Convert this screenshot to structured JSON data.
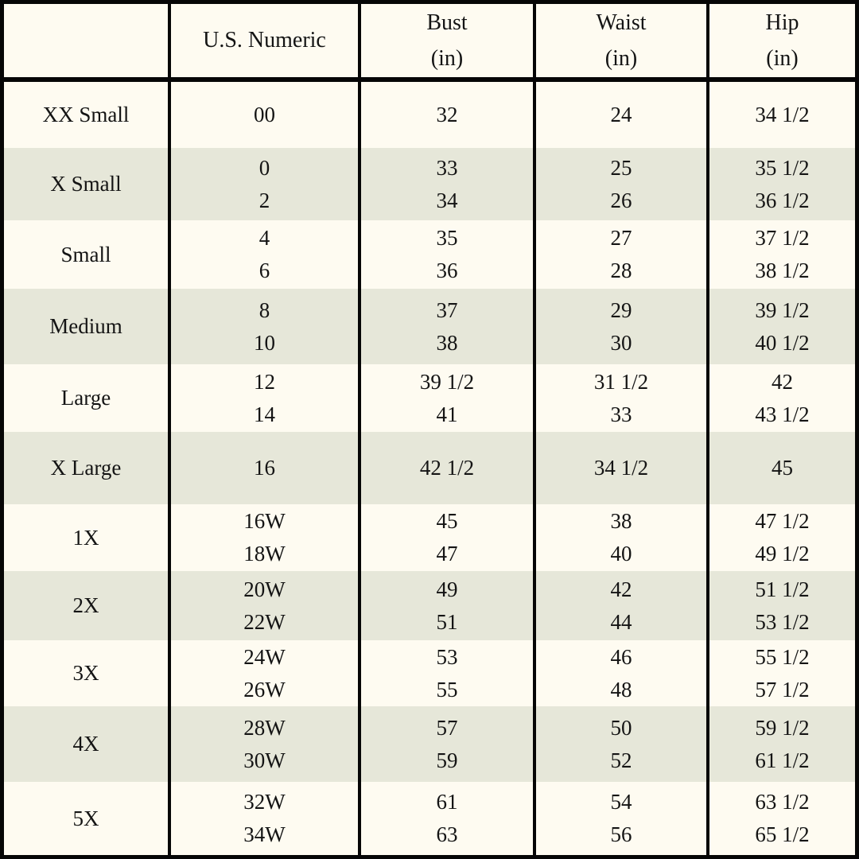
{
  "chart_data": {
    "type": "table",
    "header": {
      "size": "",
      "numeric": "U.S. Numeric",
      "bust": [
        "Bust",
        "(in)"
      ],
      "waist": [
        "Waist",
        "(in)"
      ],
      "hip": [
        "Hip",
        "(in)"
      ]
    },
    "rows": [
      {
        "size": "XX Small",
        "numeric": [
          "00"
        ],
        "bust": [
          "32"
        ],
        "waist": [
          "24"
        ],
        "hip": [
          "34 1/2"
        ]
      },
      {
        "size": "X Small",
        "numeric": [
          "0",
          "2"
        ],
        "bust": [
          "33",
          "34"
        ],
        "waist": [
          "25",
          "26"
        ],
        "hip": [
          "35 1/2",
          "36 1/2"
        ]
      },
      {
        "size": "Small",
        "numeric": [
          "4",
          "6"
        ],
        "bust": [
          "35",
          "36"
        ],
        "waist": [
          "27",
          "28"
        ],
        "hip": [
          "37 1/2",
          "38 1/2"
        ]
      },
      {
        "size": "Medium",
        "numeric": [
          "8",
          "10"
        ],
        "bust": [
          "37",
          "38"
        ],
        "waist": [
          "29",
          "30"
        ],
        "hip": [
          "39 1/2",
          "40 1/2"
        ]
      },
      {
        "size": "Large",
        "numeric": [
          "12",
          "14"
        ],
        "bust": [
          "39 1/2",
          "41"
        ],
        "waist": [
          "31 1/2",
          "33"
        ],
        "hip": [
          "42",
          "43 1/2"
        ]
      },
      {
        "size": "X Large",
        "numeric": [
          "16"
        ],
        "bust": [
          "42 1/2"
        ],
        "waist": [
          "34 1/2"
        ],
        "hip": [
          "45"
        ]
      },
      {
        "size": "1X",
        "numeric": [
          "16W",
          "18W"
        ],
        "bust": [
          "45",
          "47"
        ],
        "waist": [
          "38",
          "40"
        ],
        "hip": [
          "47 1/2",
          "49 1/2"
        ]
      },
      {
        "size": "2X",
        "numeric": [
          "20W",
          "22W"
        ],
        "bust": [
          "49",
          "51"
        ],
        "waist": [
          "42",
          "44"
        ],
        "hip": [
          "51 1/2",
          "53 1/2"
        ]
      },
      {
        "size": "3X",
        "numeric": [
          "24W",
          "26W"
        ],
        "bust": [
          "53",
          "55"
        ],
        "waist": [
          "46",
          "48"
        ],
        "hip": [
          "55 1/2",
          "57 1/2"
        ]
      },
      {
        "size": "4X",
        "numeric": [
          "28W",
          "30W"
        ],
        "bust": [
          "57",
          "59"
        ],
        "waist": [
          "50",
          "52"
        ],
        "hip": [
          "59 1/2",
          "61 1/2"
        ]
      },
      {
        "size": "5X",
        "numeric": [
          "32W",
          "34W"
        ],
        "bust": [
          "61",
          "63"
        ],
        "waist": [
          "54",
          "56"
        ],
        "hip": [
          "63 1/2",
          "65 1/2"
        ]
      }
    ]
  },
  "colors": {
    "cream": "#FEFBF1",
    "sage": "#E6E7D9",
    "border": "#060606",
    "text": "#141414"
  }
}
